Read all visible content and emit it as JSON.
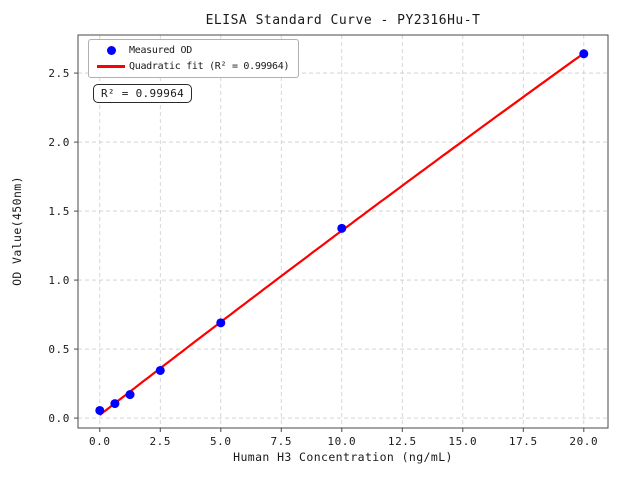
{
  "figure": {
    "title": "ELISA Standard Curve - PY2316Hu-T",
    "xlabel": "Human H3 Concentration (ng/mL)",
    "ylabel": "OD Value(450nm)",
    "annotation": "R² = 0.99964"
  },
  "legend": {
    "items": [
      {
        "label": "Measured OD",
        "marker": "dot",
        "color": "#0000ff"
      },
      {
        "label": "Quadratic fit (R² = 0.99964)",
        "marker": "line",
        "color": "#ff0000"
      }
    ]
  },
  "colors": {
    "scatter": "#0000ff",
    "fit_line": "#ff0000",
    "grid": "#cccccc",
    "spine": "#4a4a4a",
    "background": "#ffffff"
  },
  "chart_data": {
    "type": "scatter",
    "title": "ELISA Standard Curve - PY2316Hu-T",
    "xlabel": "Human H3 Concentration (ng/mL)",
    "ylabel": "OD Value(450nm)",
    "x_ticks": [
      0,
      2.5,
      5,
      7.5,
      10,
      12.5,
      15,
      17.5,
      20
    ],
    "x_tick_labels": [
      "0.0",
      "2.5",
      "5.0",
      "7.5",
      "10.0",
      "12.5",
      "15.0",
      "17.5",
      "20.0"
    ],
    "y_ticks": [
      0,
      0.5,
      1,
      1.5,
      2,
      2.5
    ],
    "y_tick_labels": [
      "0.0",
      "0.5",
      "1.0",
      "1.5",
      "2.0",
      "2.5"
    ],
    "xlim": [
      -0.9,
      21.0
    ],
    "ylim": [
      -0.072,
      2.776
    ],
    "grid": true,
    "grid_style": "dashed",
    "legend_position": "upper left",
    "series": [
      {
        "name": "Measured OD",
        "type": "scatter",
        "color": "#0000ff",
        "x": [
          0,
          0.625,
          1.25,
          2.5,
          5,
          10,
          20
        ],
        "y": [
          0.055,
          0.105,
          0.17,
          0.345,
          0.69,
          1.375,
          2.64
        ]
      },
      {
        "name": "Quadratic fit (R² = 0.99964)",
        "type": "line",
        "color": "#ff0000",
        "fit": "quadratic",
        "r_squared": 0.99964
      }
    ],
    "annotation": "R² = 0.99964"
  }
}
